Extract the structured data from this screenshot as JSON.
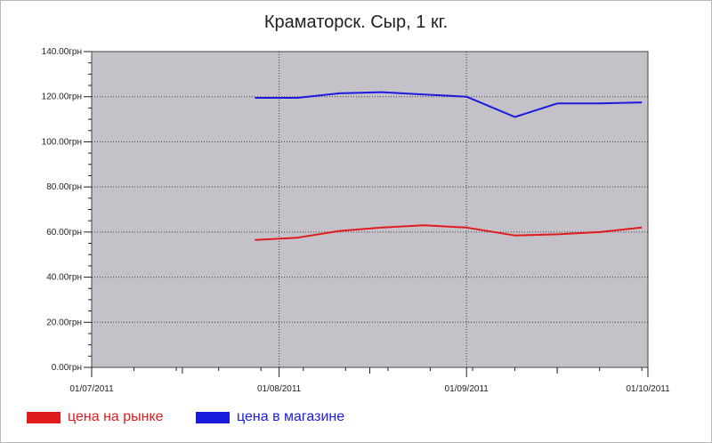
{
  "chart_data": {
    "type": "line",
    "title": "Краматорск. Сыр, 1 кг.",
    "xlabel": "",
    "ylabel": "",
    "y_unit_suffix": "грн",
    "ylim": [
      0,
      140
    ],
    "y_ticks": [
      "0.00грн",
      "20.00грн",
      "40.00грн",
      "60.00грн",
      "80.00грн",
      "100.00грн",
      "120.00грн",
      "140.00грн"
    ],
    "x_ticks": [
      "01/07/2011",
      "01/08/2011",
      "01/09/2011",
      "01/10/2011"
    ],
    "xlim": [
      "2011-07-01",
      "2011-10-01"
    ],
    "grid": true,
    "legend_position": "bottom-left",
    "series": [
      {
        "name": "цена на рынке",
        "color": "#e01b1b",
        "points": [
          [
            "2011-07-28",
            56.5
          ],
          [
            "2011-08-04",
            57.5
          ],
          [
            "2011-08-11",
            60.5
          ],
          [
            "2011-08-18",
            62
          ],
          [
            "2011-08-25",
            63
          ],
          [
            "2011-09-01",
            62
          ],
          [
            "2011-09-09",
            58.5
          ],
          [
            "2011-09-16",
            59
          ],
          [
            "2011-09-23",
            60
          ],
          [
            "2011-09-30",
            62
          ]
        ]
      },
      {
        "name": "цена в магазине",
        "color": "#1b1be0",
        "points": [
          [
            "2011-07-28",
            119.5
          ],
          [
            "2011-08-04",
            119.5
          ],
          [
            "2011-08-11",
            121.5
          ],
          [
            "2011-08-18",
            122
          ],
          [
            "2011-08-25",
            121
          ],
          [
            "2011-09-01",
            120
          ],
          [
            "2011-09-09",
            111
          ],
          [
            "2011-09-16",
            117
          ],
          [
            "2011-09-23",
            117
          ],
          [
            "2011-09-30",
            117.5
          ]
        ]
      }
    ]
  }
}
